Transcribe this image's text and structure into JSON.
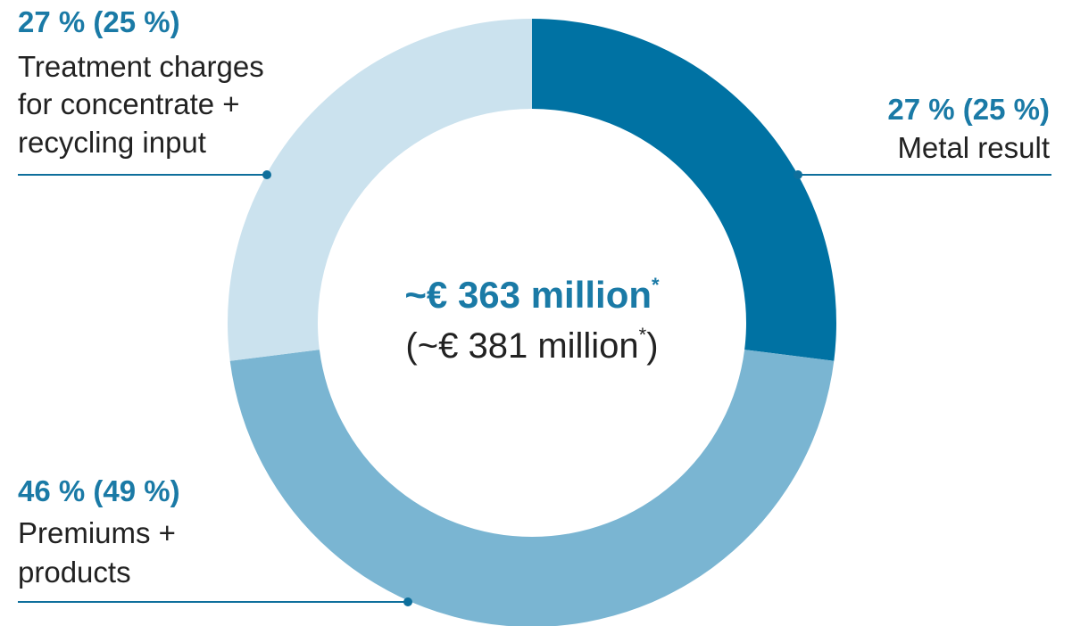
{
  "chart_data": {
    "type": "pie",
    "donut": true,
    "center": {
      "value": "~€ 363 million",
      "value_mark": "*",
      "previous_open": "(~€ 381 million",
      "previous_mark": "*",
      "previous_close": ")"
    },
    "slices": [
      {
        "key": "metal",
        "percent": 27,
        "percent_label": "27 % (25 %)",
        "previous_percent": 25,
        "label_lines": [
          "Metal result"
        ],
        "color": "#0072a3"
      },
      {
        "key": "premiums",
        "percent": 46,
        "percent_label": "46 % (49 %)",
        "previous_percent": 49,
        "label_lines": [
          "Premiums +",
          "products"
        ],
        "color": "#7ab5d2"
      },
      {
        "key": "treatment",
        "percent": 27,
        "percent_label": "27 % (25 %)",
        "previous_percent": 25,
        "label_lines": [
          "Treatment charges",
          "for concentrate +",
          "recycling input"
        ],
        "color": "#cbe2ee"
      }
    ],
    "callout_color": "#0e6f9c"
  }
}
